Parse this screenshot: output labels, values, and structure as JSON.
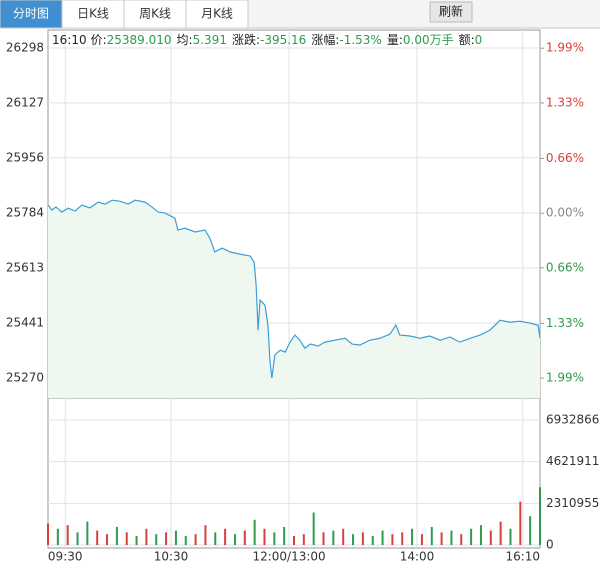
{
  "tabs": [
    "分时图",
    "日K线",
    "周K线",
    "月K线"
  ],
  "refresh": "刷新",
  "chart_data": [
    {
      "type": "line",
      "info": {
        "time": "16:10",
        "fields": [
          {
            "label": "价:",
            "value": "25389.010"
          },
          {
            "label": "均:",
            "value": "5.391"
          },
          {
            "label": "涨跌:",
            "value": "-395.16"
          },
          {
            "label": "涨幅:",
            "value": "-1.53%"
          },
          {
            "label": "量:",
            "value": "0.00万手"
          },
          {
            "label": "额:",
            "value": "0"
          }
        ]
      },
      "x": [
        0,
        0.8,
        1.6,
        2.8,
        4.1,
        5.5,
        6.9,
        8.5,
        10.2,
        11.6,
        13.0,
        14.6,
        16.3,
        17.7,
        19.7,
        21.1,
        22.4,
        23.8,
        25.8,
        26.4,
        27.8,
        29.9,
        31.9,
        32.9,
        33.9,
        35.4,
        37.0,
        39.0,
        41.1,
        41.9,
        42.3,
        42.7,
        43.1,
        44.1,
        44.7,
        45.1,
        45.5,
        46.1,
        47.2,
        48.2,
        49.2,
        50.2,
        51.2,
        52.2,
        53.3,
        54.9,
        56.3,
        58.3,
        60.4,
        61.8,
        63.4,
        65.4,
        67.5,
        69.5,
        70.7,
        71.5,
        73.6,
        75.6,
        77.6,
        79.7,
        81.7,
        83.7,
        85.8,
        87.8,
        89.8,
        91.9,
        93.9,
        95.9,
        98.0,
        99.6,
        100
      ],
      "series": [
        {
          "color": "#3a9fd6",
          "values": [
            25809,
            25793,
            25803,
            25787,
            25799,
            25790,
            25809,
            25800,
            25818,
            25812,
            25824,
            25821,
            25812,
            25824,
            25818,
            25803,
            25787,
            25784,
            25768,
            25731,
            25737,
            25725,
            25731,
            25706,
            25663,
            25675,
            25663,
            25656,
            25650,
            25631,
            25560,
            25419,
            25513,
            25497,
            25435,
            25326,
            25270,
            25342,
            25357,
            25351,
            25382,
            25404,
            25388,
            25363,
            25376,
            25370,
            25382,
            25388,
            25394,
            25376,
            25373,
            25388,
            25394,
            25407,
            25435,
            25404,
            25401,
            25394,
            25401,
            25388,
            25398,
            25382,
            25394,
            25404,
            25419,
            25450,
            25444,
            25447,
            25441,
            25435,
            25394
          ]
        }
      ],
      "fill": "#eef8f1",
      "xlim": [
        0,
        100
      ],
      "ylim": [
        25208,
        26354
      ],
      "yticks": [
        25270,
        25441,
        25613,
        25784,
        25956,
        26127,
        26298
      ],
      "y2lim": [
        -2.23,
        2.21
      ],
      "y2ticks": [
        {
          "value": -1.99,
          "label": "1.99%"
        },
        {
          "value": -1.33,
          "label": "1.33%"
        },
        {
          "value": -0.66,
          "label": "0.66%"
        },
        {
          "value": 0,
          "label": "0.00%"
        },
        {
          "value": 0.66,
          "label": "0.66%"
        },
        {
          "value": 1.33,
          "label": "1.33%"
        },
        {
          "value": 1.99,
          "label": "1.99%"
        }
      ],
      "grid": true
    },
    {
      "type": "bar",
      "x": [
        0,
        2,
        4,
        6,
        8,
        10,
        12,
        14,
        16,
        18,
        20,
        22,
        24,
        26,
        28,
        30,
        32,
        34,
        36,
        38,
        40,
        42,
        44,
        46,
        48,
        50,
        52,
        54,
        56,
        58,
        60,
        62,
        64,
        66,
        68,
        70,
        72,
        74,
        76,
        78,
        80,
        82,
        84,
        86,
        88,
        90,
        92,
        94,
        96,
        98,
        100
      ],
      "values": [
        1200000,
        900000,
        1100000,
        700000,
        1300000,
        800000,
        600000,
        1000000,
        700000,
        500000,
        900000,
        600000,
        700000,
        800000,
        500000,
        600000,
        1100000,
        700000,
        900000,
        600000,
        800000,
        1400000,
        900000,
        700000,
        1000000,
        500000,
        600000,
        1800000,
        700000,
        800000,
        900000,
        600000,
        700000,
        500000,
        800000,
        600000,
        700000,
        900000,
        600000,
        1000000,
        700000,
        800000,
        600000,
        900000,
        1100000,
        800000,
        1300000,
        900000,
        2400000,
        1600000,
        3200000
      ],
      "colors": [
        "#d9403a",
        "#2e9b4e",
        "#d9403a",
        "#2e9b4e",
        "#2e9b4e",
        "#d9403a",
        "#d9403a",
        "#2e9b4e",
        "#d9403a",
        "#2e9b4e",
        "#d9403a",
        "#2e9b4e",
        "#d9403a",
        "#2e9b4e",
        "#2e9b4e",
        "#d9403a",
        "#d9403a",
        "#2e9b4e",
        "#d9403a",
        "#2e9b4e",
        "#d9403a",
        "#2e9b4e",
        "#d9403a",
        "#2e9b4e",
        "#2e9b4e",
        "#d9403a",
        "#d9403a",
        "#2e9b4e",
        "#d9403a",
        "#2e9b4e",
        "#d9403a",
        "#2e9b4e",
        "#d9403a",
        "#2e9b4e",
        "#2e9b4e",
        "#d9403a",
        "#d9403a",
        "#2e9b4e",
        "#d9403a",
        "#2e9b4e",
        "#d9403a",
        "#2e9b4e",
        "#d9403a",
        "#2e9b4e",
        "#2e9b4e",
        "#d9403a",
        "#d9403a",
        "#2e9b4e",
        "#d9403a",
        "#2e9b4e",
        "#2e9b4e"
      ],
      "xlim": [
        0,
        100
      ],
      "xticks": [
        {
          "value": 3.5,
          "label": "09:30"
        },
        {
          "value": 25,
          "label": "10:30"
        },
        {
          "value": 49,
          "label": "12:00/13:00"
        },
        {
          "value": 75,
          "label": "14:00"
        },
        {
          "value": 96.5,
          "label": "16:10"
        }
      ],
      "ylim": [
        0,
        8153000
      ],
      "yticks": [
        0,
        2310955,
        4621911,
        6932866
      ],
      "grid": true
    }
  ]
}
